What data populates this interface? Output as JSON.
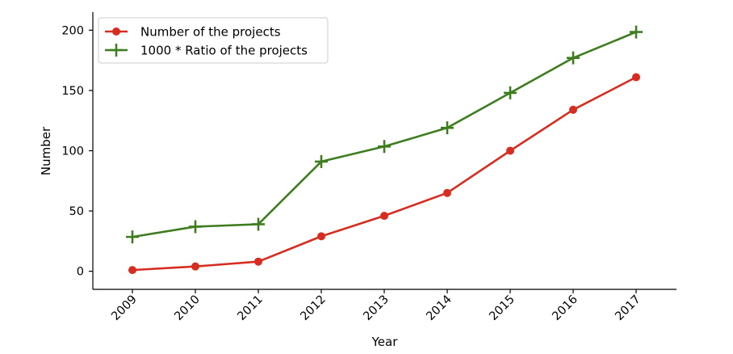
{
  "chart_data": {
    "type": "line",
    "x": [
      "2009",
      "2010",
      "2011",
      "2012",
      "2013",
      "2014",
      "2015",
      "2016",
      "2017"
    ],
    "xlabel": "Year",
    "ylabel": "Number",
    "ylim": [
      -15,
      215
    ],
    "yticks": [
      "0",
      "50",
      "100",
      "150",
      "200"
    ],
    "grid": false,
    "legend_position": "top-left",
    "series": [
      {
        "name": "Number of the projects",
        "color": "#d62d20",
        "marker": "circle",
        "values": [
          1,
          4,
          8,
          29,
          46,
          65,
          100,
          134,
          161
        ]
      },
      {
        "name": "1000 * Ratio of the projects",
        "color": "#3e7d1f",
        "marker": "plus",
        "values": [
          28.5,
          37,
          39,
          91,
          103.5,
          119,
          148,
          177,
          198.5
        ]
      }
    ]
  }
}
